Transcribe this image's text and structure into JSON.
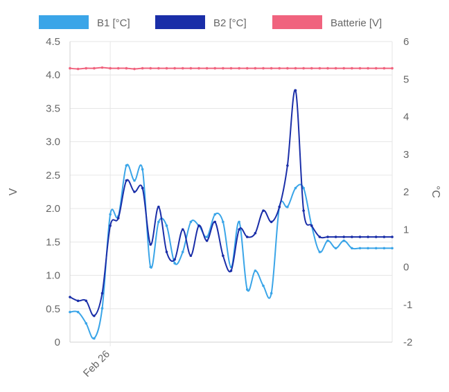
{
  "chart_data": {
    "type": "line",
    "legend": {
      "position": "top"
    },
    "grid": true,
    "y_left": {
      "label": "V",
      "range": [
        0,
        4.5
      ],
      "ticks": [
        "0",
        "0.5",
        "1.0",
        "1.5",
        "2.0",
        "2.5",
        "3.0",
        "3.5",
        "4.0",
        "4.5"
      ]
    },
    "y_right": {
      "label": "°C",
      "range": [
        -2,
        6
      ],
      "ticks": [
        "-2",
        "-1",
        "0",
        "1",
        "2",
        "3",
        "4",
        "5",
        "6"
      ]
    },
    "x_axis": {
      "ticks": [
        {
          "label": "Feb 26",
          "x": 5
        }
      ]
    },
    "series": [
      {
        "name": "B1 [°C]",
        "axis": "right",
        "color": "#3aa5e8",
        "x": [
          0,
          1,
          2,
          3,
          4,
          5,
          6,
          7,
          8,
          9,
          10,
          11,
          12,
          13,
          14,
          15,
          16,
          17,
          18,
          19,
          20,
          21,
          22,
          23,
          24,
          25,
          26,
          27,
          28,
          29,
          30,
          31,
          32,
          33,
          34,
          35,
          36,
          37,
          38,
          39,
          40
        ],
        "values": [
          -1.2,
          -1.2,
          -1.5,
          -1.9,
          -1.1,
          1.4,
          1.35,
          2.7,
          2.3,
          2.6,
          0,
          1.2,
          1.1,
          0.1,
          0.4,
          1.2,
          1.1,
          0.8,
          1.4,
          1.2,
          0,
          1.2,
          -0.6,
          -0.1,
          -0.5,
          -0.7,
          1.6,
          1.6,
          2.1,
          2.1,
          1.1,
          0.4,
          0.7,
          0.5,
          0.7,
          0.5,
          0.5,
          0.5,
          0.5,
          0.5,
          0.5
        ]
      },
      {
        "name": "B2 [°C]",
        "axis": "right",
        "color": "#1a2ea8",
        "x": [
          0,
          1,
          2,
          3,
          4,
          5,
          6,
          7,
          8,
          9,
          10,
          11,
          12,
          13,
          14,
          15,
          16,
          17,
          18,
          19,
          20,
          21,
          22,
          23,
          24,
          25,
          26,
          27,
          28,
          29,
          30,
          31,
          32,
          33,
          34,
          35,
          36,
          37,
          38,
          39,
          40
        ],
        "values": [
          -0.8,
          -0.9,
          -0.9,
          -1.3,
          -0.7,
          1.1,
          1.3,
          2.3,
          2.0,
          2.1,
          0.6,
          1.6,
          0.4,
          0.2,
          1.0,
          0.3,
          1.1,
          0.7,
          1.2,
          0.3,
          -0.1,
          1.0,
          0.8,
          0.9,
          1.5,
          1.2,
          1.6,
          2.7,
          4.7,
          1.5,
          1.1,
          0.8,
          0.8,
          0.8,
          0.8,
          0.8,
          0.8,
          0.8,
          0.8,
          0.8,
          0.8
        ]
      },
      {
        "name": "Batterie [V]",
        "axis": "left",
        "color": "#f0637e",
        "x": [
          0,
          1,
          2,
          3,
          4,
          5,
          6,
          7,
          8,
          9,
          10,
          11,
          12,
          13,
          14,
          15,
          16,
          17,
          18,
          19,
          20,
          21,
          22,
          23,
          24,
          25,
          26,
          27,
          28,
          29,
          30,
          31,
          32,
          33,
          34,
          35,
          36,
          37,
          38,
          39,
          40
        ],
        "values": [
          4.1,
          4.09,
          4.1,
          4.1,
          4.11,
          4.1,
          4.1,
          4.1,
          4.09,
          4.1,
          4.1,
          4.1,
          4.1,
          4.1,
          4.1,
          4.1,
          4.1,
          4.1,
          4.1,
          4.1,
          4.1,
          4.1,
          4.1,
          4.1,
          4.1,
          4.1,
          4.1,
          4.1,
          4.1,
          4.1,
          4.1,
          4.1,
          4.1,
          4.1,
          4.1,
          4.1,
          4.1,
          4.1,
          4.1,
          4.1,
          4.1
        ]
      }
    ]
  }
}
